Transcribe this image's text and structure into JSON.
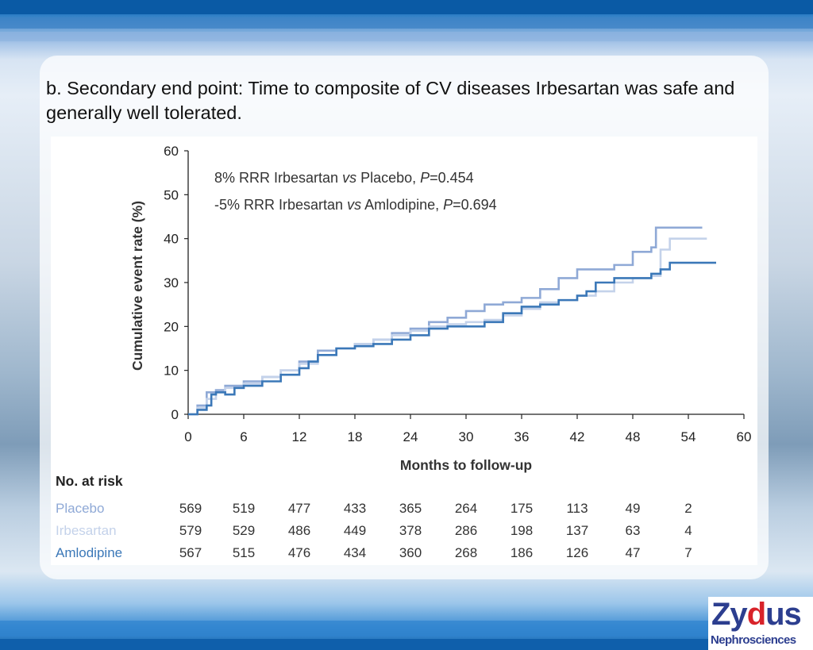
{
  "slide": {
    "title": "b. Secondary end point: Time to composite of CV diseases Irbesartan was safe and generally well tolerated."
  },
  "logo": {
    "brand_pre": "Zy",
    "brand_mark": "d",
    "brand_post": "us",
    "subtitle": "Nephrosciences"
  },
  "colors": {
    "placebo": "#8fa9d6",
    "irbesartan": "#c4d2ea",
    "amlodipine": "#3b78b8",
    "axis": "#222222"
  },
  "chart_data": {
    "type": "line",
    "step": true,
    "title": "",
    "xlabel": "Months to follow-up",
    "ylabel": "Cumulative event rate (%)",
    "xlim": [
      0,
      60
    ],
    "ylim": [
      0,
      60
    ],
    "xticks": [
      0,
      6,
      12,
      18,
      24,
      30,
      36,
      42,
      48,
      54,
      60
    ],
    "yticks": [
      0,
      10,
      20,
      30,
      40,
      50,
      60
    ],
    "grid": false,
    "annotations": [
      {
        "parts": [
          {
            "t": "8% RRR Irbesartan ",
            "i": false
          },
          {
            "t": "vs",
            "i": true
          },
          {
            "t": " Placebo, ",
            "i": false
          },
          {
            "t": "P",
            "i": true
          },
          {
            "t": "=0.454",
            "i": false
          }
        ]
      },
      {
        "parts": [
          {
            "t": "-5% RRR Irbesartan ",
            "i": false
          },
          {
            "t": "vs",
            "i": true
          },
          {
            "t": " Amlodipine, ",
            "i": false
          },
          {
            "t": "P",
            "i": true
          },
          {
            "t": "=0.694",
            "i": false
          }
        ]
      }
    ],
    "series": [
      {
        "name": "Placebo",
        "color": "#8fa9d6",
        "x": [
          0,
          1,
          2,
          3,
          4,
          6,
          8,
          10,
          12,
          14,
          16,
          18,
          20,
          22,
          24,
          26,
          28,
          30,
          32,
          34,
          36,
          38,
          40,
          42,
          43,
          44,
          46,
          47,
          48,
          49,
          50,
          50.5,
          52,
          54,
          55.5
        ],
        "y": [
          0,
          2,
          5,
          5.5,
          6.5,
          7.5,
          8.5,
          10,
          12,
          14.5,
          15,
          16,
          17,
          18.5,
          19.5,
          21,
          22,
          23.5,
          25,
          25.5,
          26.5,
          28.5,
          31,
          33,
          33,
          33,
          34,
          34,
          37,
          37,
          38,
          42.5,
          42.5,
          42.5,
          42.5
        ]
      },
      {
        "name": "Irbesartan",
        "color": "#c4d2ea",
        "x": [
          0,
          1,
          2,
          3,
          4,
          6,
          8,
          10,
          12,
          14,
          16,
          18,
          20,
          22,
          24,
          26,
          28,
          30,
          32,
          34,
          36,
          38,
          40,
          42,
          44,
          46,
          48,
          50,
          51,
          52,
          54,
          56
        ],
        "y": [
          0,
          1.5,
          3.5,
          5,
          6,
          7,
          8.5,
          10,
          11.5,
          13.5,
          15,
          16,
          17,
          18,
          19,
          20,
          20.5,
          21,
          21.5,
          22.5,
          24,
          25.5,
          26,
          27,
          28,
          30,
          31,
          31.5,
          37.5,
          40,
          40,
          40
        ]
      },
      {
        "name": "Amlodipine",
        "color": "#3b78b8",
        "x": [
          0,
          1,
          2,
          2.5,
          3,
          4,
          5,
          6,
          8,
          10,
          12,
          13,
          14,
          16,
          18,
          20,
          22,
          24,
          26,
          28,
          30,
          31,
          32,
          34,
          36,
          38,
          40,
          42,
          43,
          44,
          46,
          48,
          50,
          51,
          52,
          54,
          56,
          57
        ],
        "y": [
          0,
          1,
          2,
          4.5,
          5,
          4.5,
          6,
          6.5,
          7.5,
          9,
          10.5,
          12,
          13.5,
          15,
          15.5,
          16,
          17,
          18,
          19.5,
          20,
          20,
          20,
          21,
          23,
          24.5,
          25,
          26,
          27,
          28,
          30,
          31,
          31,
          32,
          33,
          34.5,
          34.5,
          34.5,
          34.5
        ]
      }
    ],
    "risk_table": {
      "header": "No. at risk",
      "rows": [
        {
          "name": "Placebo",
          "color": "#8fa9d6",
          "values": [
            "569",
            "519",
            "477",
            "433",
            "365",
            "264",
            "175",
            "113",
            "49",
            "2"
          ]
        },
        {
          "name": "Irbesartan",
          "color": "#c4d2ea",
          "values": [
            "579",
            "529",
            "486",
            "449",
            "378",
            "286",
            "198",
            "137",
            "63",
            "4"
          ]
        },
        {
          "name": "Amlodipine",
          "color": "#3b78b8",
          "values": [
            "567",
            "515",
            "476",
            "434",
            "360",
            "268",
            "186",
            "126",
            "47",
            "7"
          ]
        }
      ]
    }
  }
}
